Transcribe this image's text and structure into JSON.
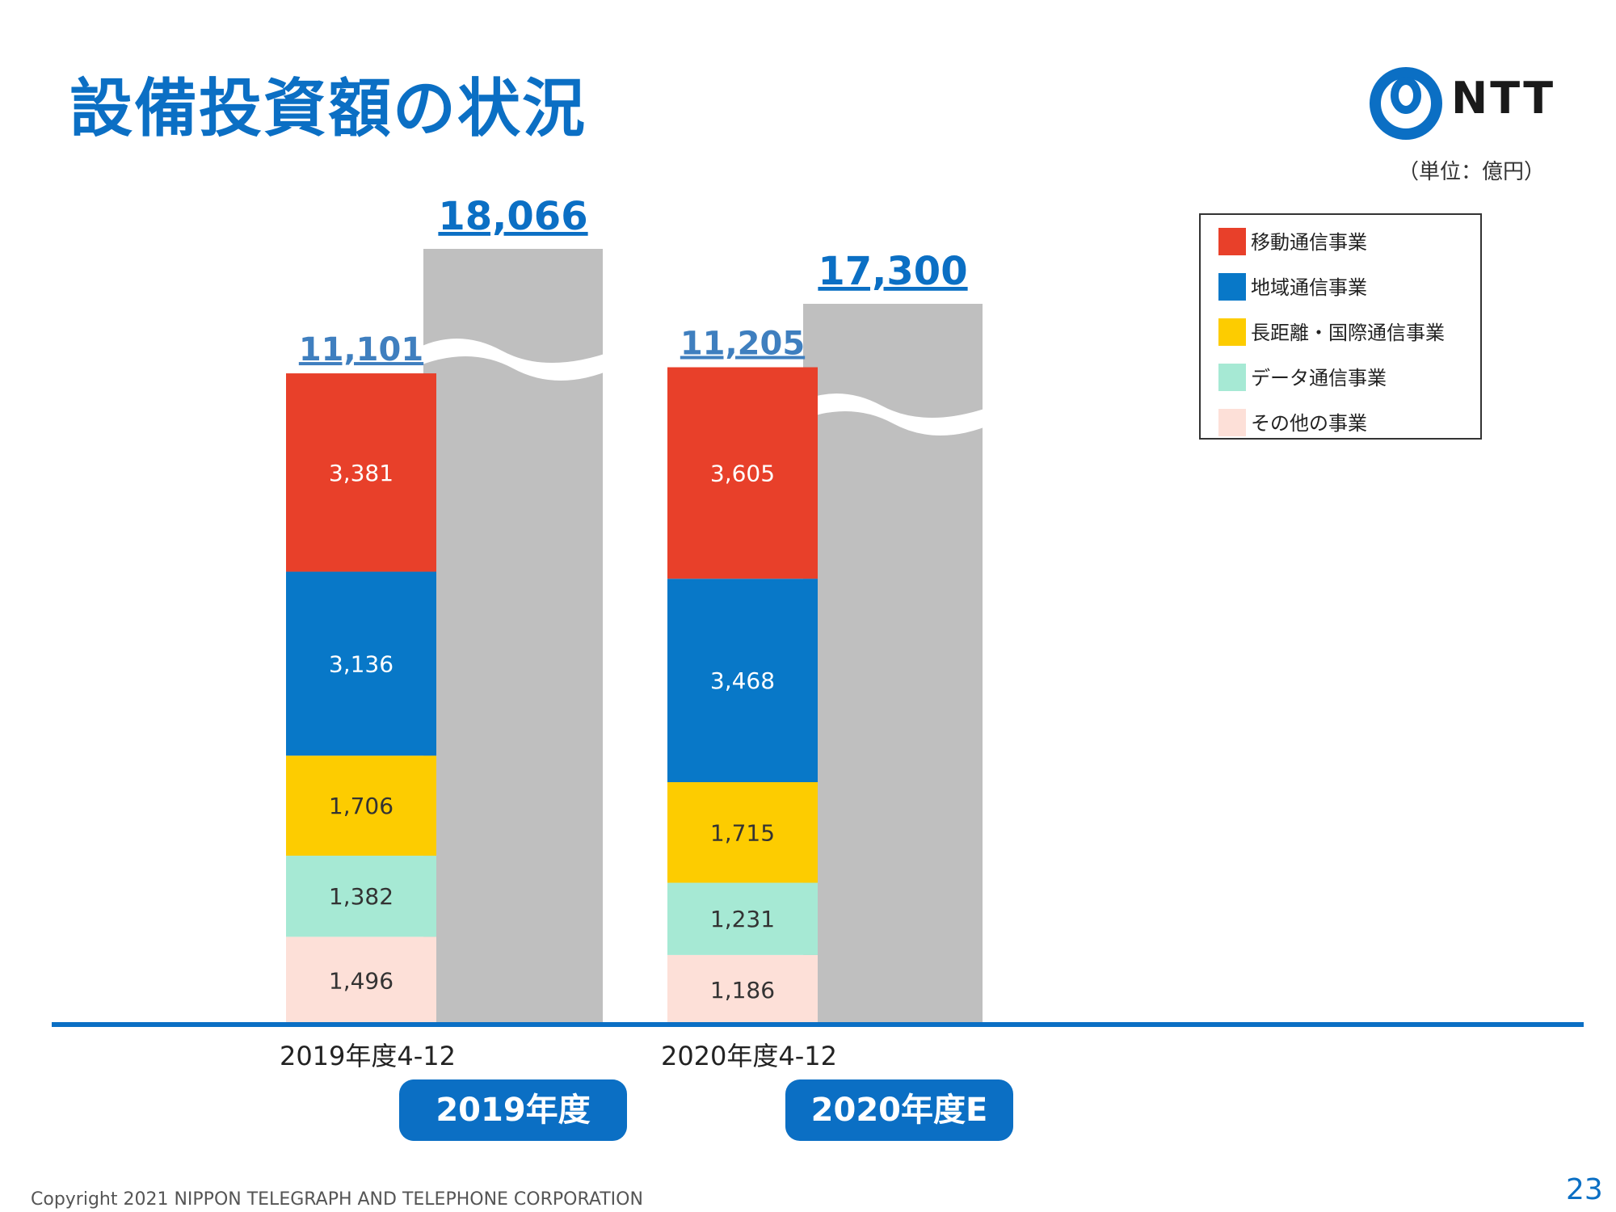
{
  "title": "設備投資額の状況",
  "unit_note": "（単位：億円）",
  "logo": {
    "text": "NTT"
  },
  "footer": {
    "copyright": "Copyright 2021 NIPPON TELEGRAPH AND TELEPHONE CORPORATION",
    "page_number": "23"
  },
  "badges": [
    "2019年度",
    "2020年度E"
  ],
  "colors": {
    "accent": "#0b6fc4",
    "mobile": "#e8402a",
    "regional": "#0878c8",
    "long_distance": "#fdcc00",
    "data": "#a6e9d4",
    "other": "#fde0d8",
    "full_year_bar": "#bfbfbf"
  },
  "chart_data": {
    "type": "bar",
    "stacked": true,
    "categories": [
      "2019年度4-12",
      "2020年度4-12"
    ],
    "series": [
      {
        "name": "移動通信事業",
        "color": "#e8402a",
        "label_color": "#ffffff",
        "values": [
          3381,
          3605
        ]
      },
      {
        "name": "地域通信事業",
        "color": "#0878c8",
        "label_color": "#ffffff",
        "values": [
          3136,
          3468
        ]
      },
      {
        "name": "長距離・国際通信事業",
        "color": "#fdcc00",
        "label_color": "#333333",
        "values": [
          1706,
          1715
        ]
      },
      {
        "name": "データ通信事業",
        "color": "#a6e9d4",
        "label_color": "#333333",
        "values": [
          1382,
          1231
        ]
      },
      {
        "name": "その他の事業",
        "color": "#fde0d8",
        "label_color": "#333333",
        "values": [
          1496,
          1186
        ]
      }
    ],
    "stack_totals": [
      "11,101",
      "11,205"
    ],
    "full_year_bars": [
      {
        "badge": "2019年度",
        "value": 18066,
        "value_label": "18,066",
        "broken_axis": true
      },
      {
        "badge": "2020年度E",
        "value": 17300,
        "value_label": "17,300",
        "broken_axis": true
      }
    ],
    "value_labels": {
      "2019年度4-12": [
        "3,381",
        "3,136",
        "1,706",
        "1,382",
        "1,496"
      ],
      "2020年度4-12": [
        "3,605",
        "3,468",
        "1,715",
        "1,231",
        "1,186"
      ]
    },
    "legend_position": "top-right",
    "grid": false,
    "title": "設備投資額の状況",
    "unit": "億円"
  }
}
